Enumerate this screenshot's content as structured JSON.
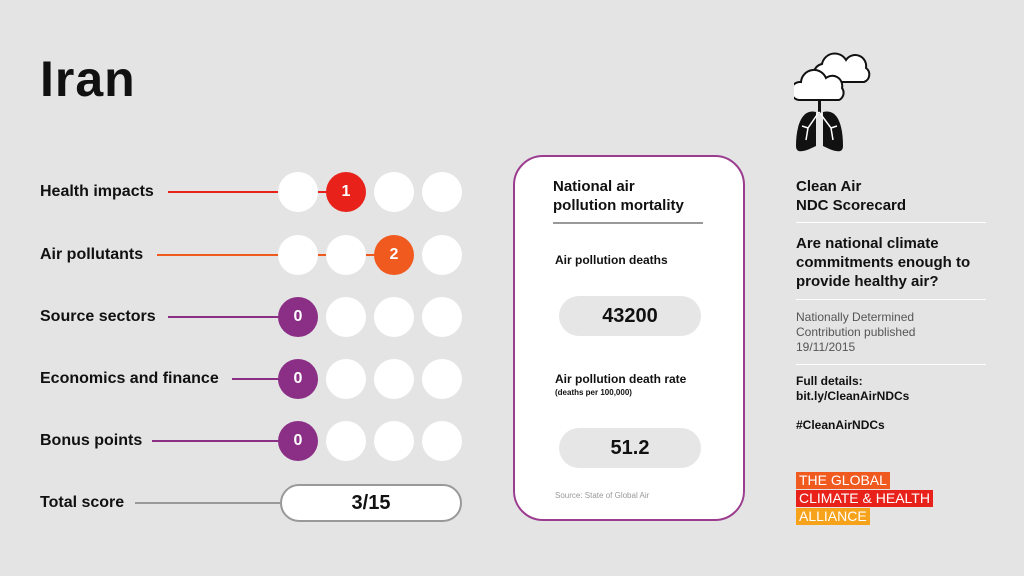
{
  "country": "Iran",
  "rows": [
    {
      "label": "Health impacts",
      "score": "1",
      "active_color": "#e8221b",
      "filled_index": 1
    },
    {
      "label": "Air pollutants",
      "score": "2",
      "active_color": "#f05a1f",
      "filled_index": 2
    },
    {
      "label": "Source sectors",
      "score": "0",
      "active_color": "#8b2f86",
      "filled_index": 0
    },
    {
      "label": "Economics and finance",
      "score": "0",
      "active_color": "#8b2f86",
      "filled_index": 0
    },
    {
      "label": "Bonus points",
      "score": "0",
      "active_color": "#8b2f86",
      "filled_index": 0
    }
  ],
  "total": {
    "label": "Total score",
    "value": "3/15"
  },
  "card": {
    "title_1": "National air",
    "title_2": "pollution mortality",
    "deaths_label": "Air pollution deaths",
    "deaths": "43200",
    "rate_label": "Air pollution death rate",
    "rate_unit": "(deaths per 100,000)",
    "rate": "51.2",
    "source": "Source: State of Global Air"
  },
  "side": {
    "icon": "cloud-lungs-icon",
    "title_1": "Clean Air",
    "title_2": "NDC Scorecard",
    "question": "Are national climate commitments enough to provide healthy air?",
    "ndc_1": "Nationally Determined",
    "ndc_2": "Contribution published",
    "ndc_date": "19/11/2015",
    "details_1": "Full details:",
    "details_2": "bit.ly/CleanAirNDCs",
    "hashtag": "#CleanAirNDCs",
    "logo": [
      "THE GLOBAL",
      "CLIMATE & HEALTH",
      "ALLIANCE"
    ],
    "logo_colors": [
      "#f05a1f",
      "#e8221b",
      "#f7a21b"
    ]
  }
}
